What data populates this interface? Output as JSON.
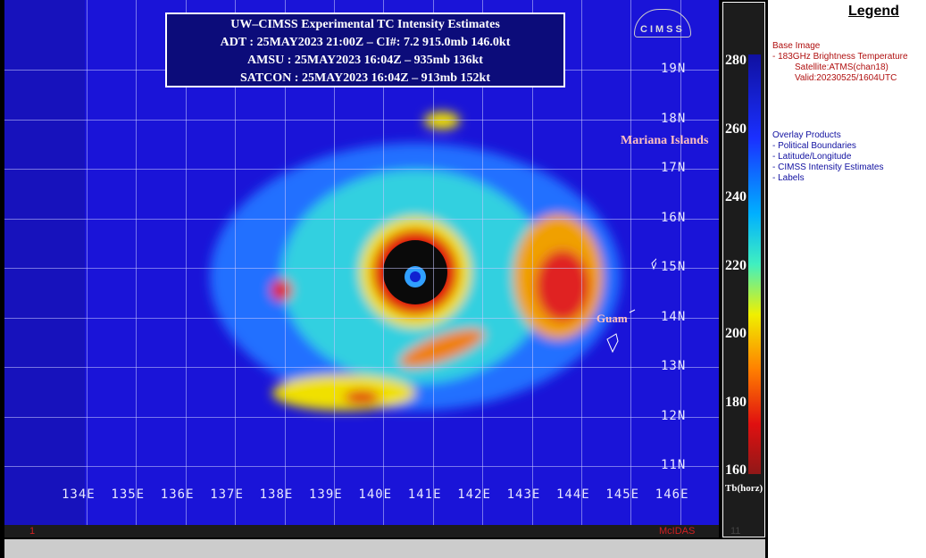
{
  "title": {
    "line1": "UW–CIMSS Experimental TC Intensity Estimates",
    "line2": "ADT : 25MAY2023 21:00Z –  CI#: 7.2  915.0mb  146.0kt",
    "line3": "AMSU : 25MAY2023 16:04Z –  935mb  136kt",
    "line4": "SATCON : 25MAY2023 16:04Z –  913mb  152kt"
  },
  "lon_labels": [
    "134E",
    "135E",
    "136E",
    "137E",
    "138E",
    "139E",
    "140E",
    "141E",
    "142E",
    "143E",
    "144E",
    "145E",
    "146E"
  ],
  "lat_labels": [
    "19N",
    "18N",
    "17N",
    "16N",
    "15N",
    "14N",
    "13N",
    "12N",
    "11N"
  ],
  "places": {
    "mariana": "Mariana Islands",
    "guam": "Guam"
  },
  "logo": "CIMSS",
  "footer": {
    "left": "1",
    "mcidas": "McIDAS",
    "frame": "11"
  },
  "colorbar": {
    "ticks": [
      "280",
      "260",
      "240",
      "220",
      "200",
      "180",
      "160"
    ],
    "unit": "Tb(horz)"
  },
  "legend": {
    "title": "Legend",
    "base_header": "Base Image",
    "base_item": "-  183GHz Brightness Temperature",
    "satellite": "Satellite:ATMS(chan18)",
    "valid": "Valid:20230525/1604UTC",
    "overlay_header": "Overlay Products",
    "overlays": [
      "-  Political Boundaries",
      "-  Latitude/Longitude",
      "-  CIMSS Intensity Estimates",
      "-  Labels"
    ]
  }
}
